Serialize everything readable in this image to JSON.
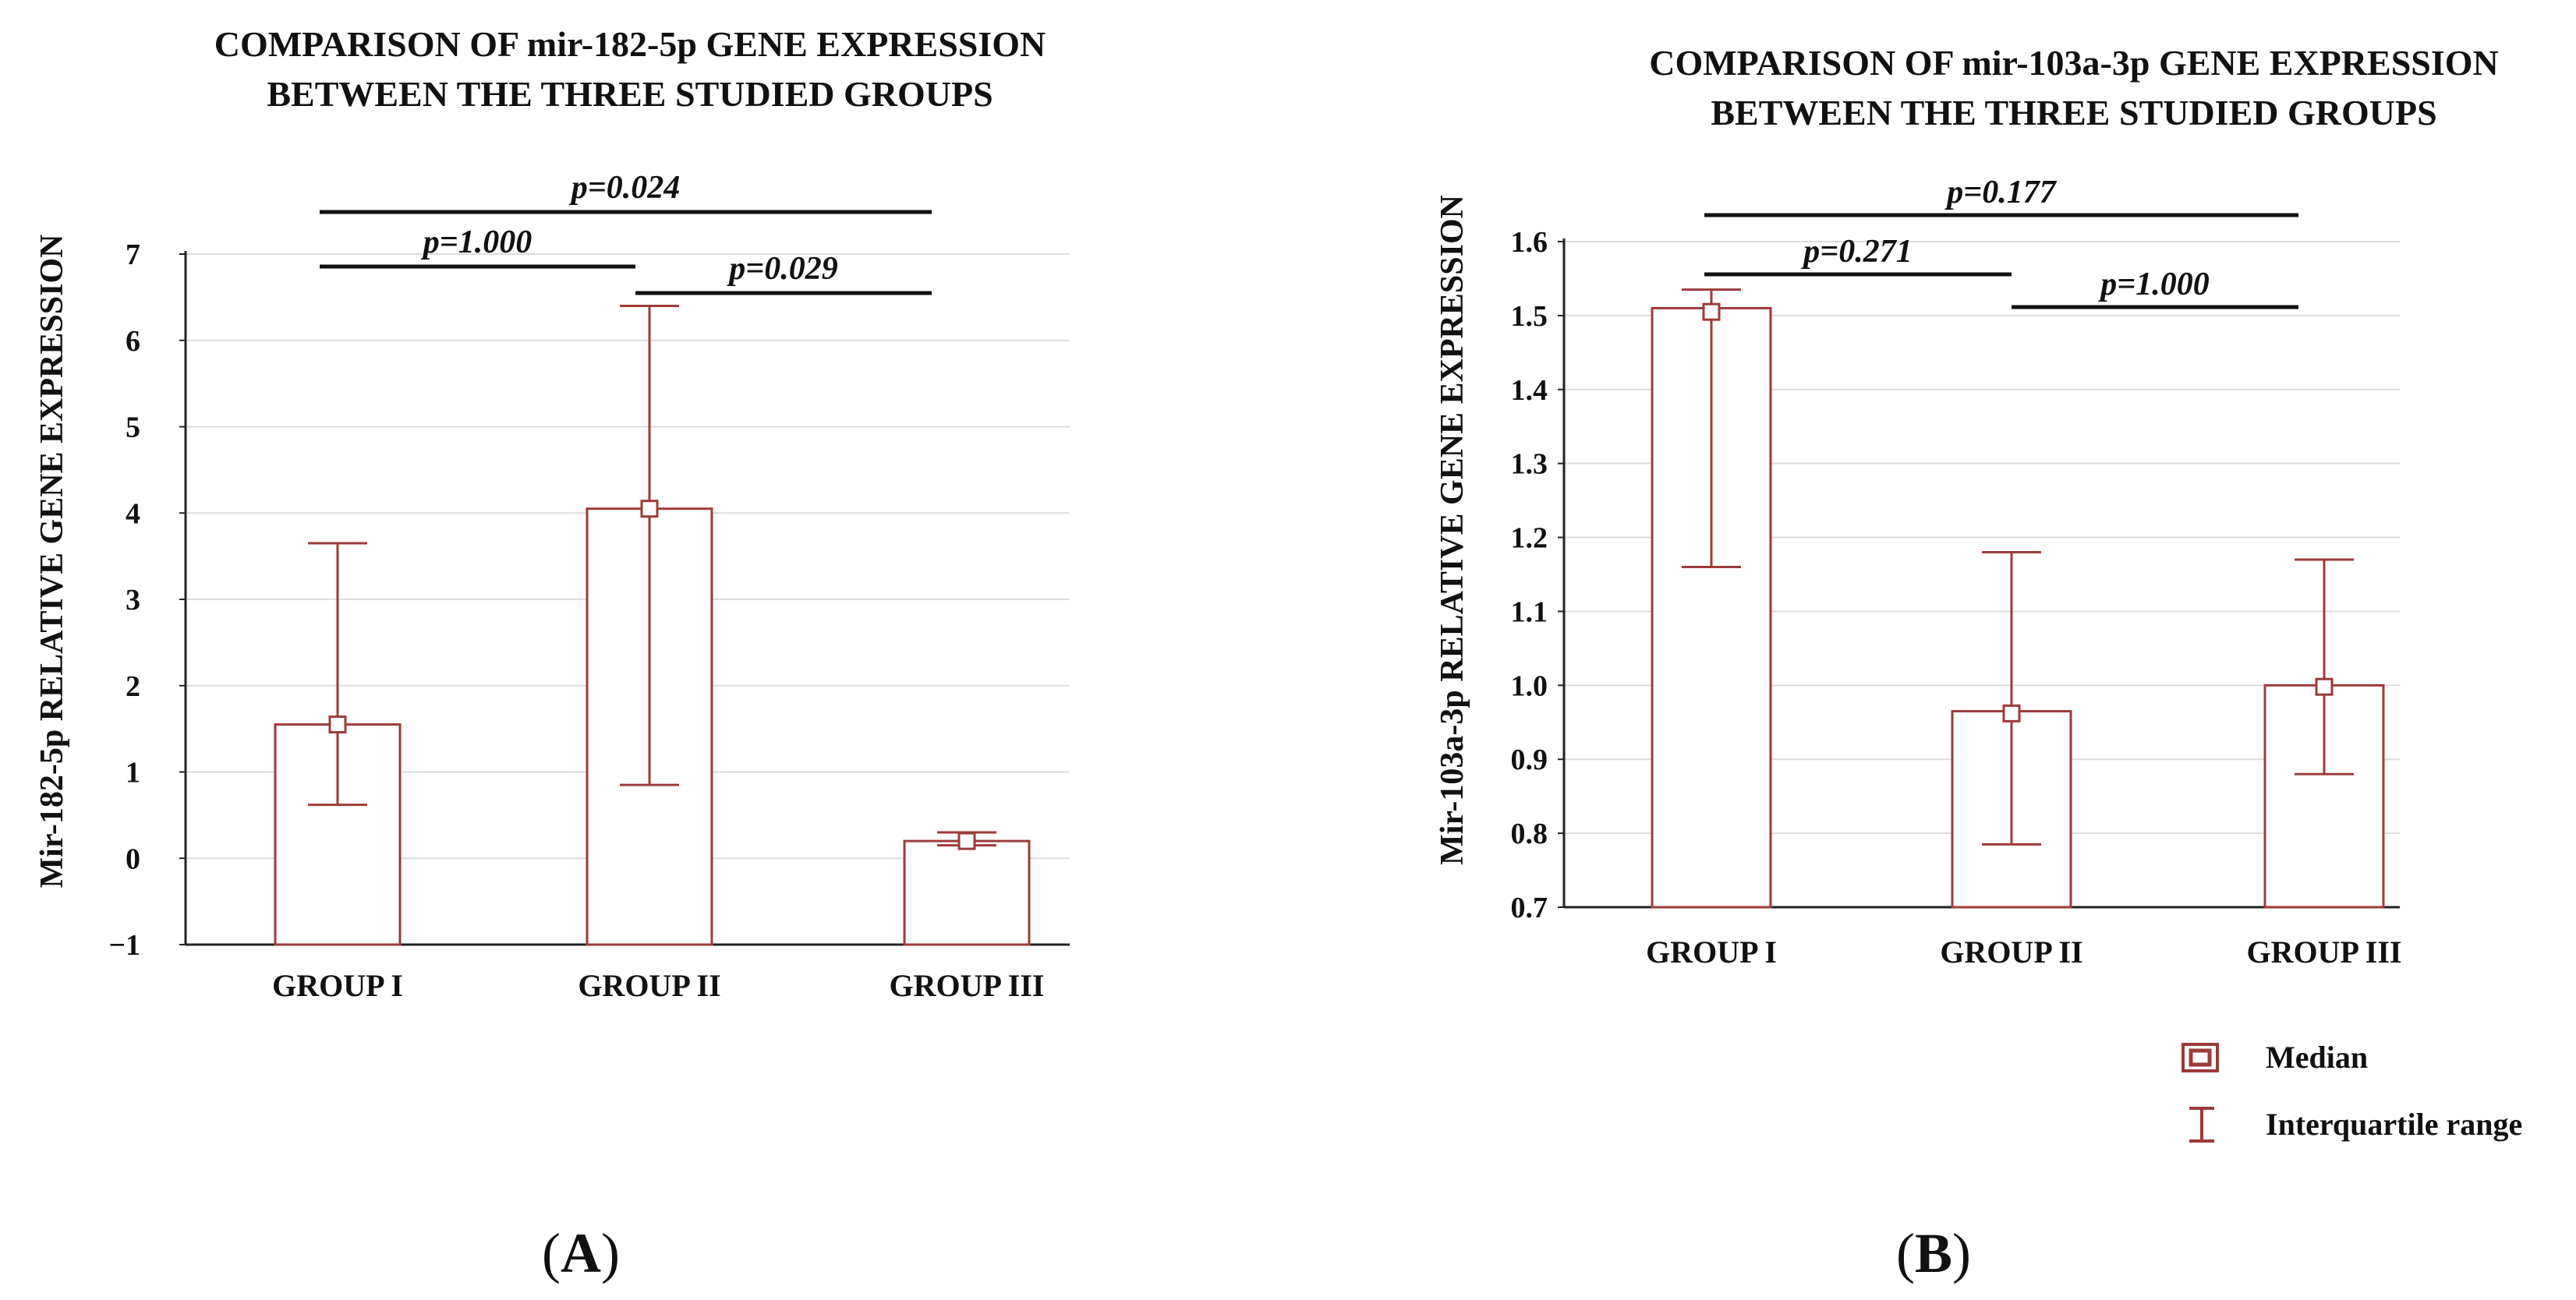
{
  "colors": {
    "bar": "#9e3a3a",
    "axis": "#222222",
    "grid": "#dcdcdc",
    "median_fill": "#ffffff"
  },
  "legend": {
    "median_label": "Median",
    "iqr_label": "Interquartile range",
    "median_icon": "hollow-square-icon",
    "iqr_icon": "i-beam-icon"
  },
  "chart_data": [
    {
      "type": "bar",
      "panel_label": "A",
      "title_lines": [
        "COMPARISON OF mir-182-5p GENE EXPRESSION",
        "BETWEEN THE THREE STUDIED GROUPS"
      ],
      "ylabel": "Mir-182-5p  RELATIVE GENE EXPRESSION",
      "xlabel": "",
      "categories": [
        "GROUP I",
        "GROUP II",
        "GROUP III"
      ],
      "values": [
        1.55,
        4.05,
        0.2
      ],
      "median": [
        1.55,
        4.05,
        0.2
      ],
      "iqr_low": [
        0.62,
        0.85,
        0.15
      ],
      "iqr_high": [
        3.65,
        6.4,
        0.3
      ],
      "ylim": [
        -1,
        7
      ],
      "yticks": [
        "7",
        "6",
        "5",
        "4",
        "3",
        "2",
        "1",
        "0",
        "−1"
      ],
      "ytick_values": [
        7,
        6,
        5,
        4,
        3,
        2,
        1,
        0,
        -1
      ],
      "grid": true,
      "comparisons": [
        {
          "label": "p=0.024",
          "from": 0,
          "to": 2,
          "level": 1
        },
        {
          "label": "p=1.000",
          "from": 0,
          "to": 1,
          "level": 2
        },
        {
          "label": "p=0.029",
          "from": 1,
          "to": 2,
          "level": 3
        }
      ]
    },
    {
      "type": "bar",
      "panel_label": "B",
      "title_lines": [
        "COMPARISON OF mir-103a-3p GENE EXPRESSION",
        "BETWEEN THE THREE STUDIED GROUPS"
      ],
      "ylabel": "Mir-103a-3p  RELATIVE GENE EXPRESSION",
      "xlabel": "",
      "categories": [
        "GROUP I",
        "GROUP II",
        "GROUP III"
      ],
      "values": [
        1.51,
        0.965,
        1.0
      ],
      "median": [
        1.505,
        0.962,
        0.998
      ],
      "iqr_low": [
        1.16,
        0.785,
        0.88
      ],
      "iqr_high": [
        1.535,
        1.18,
        1.17
      ],
      "ylim": [
        0.7,
        1.6
      ],
      "yticks": [
        "1.6",
        "1.5",
        "1.4",
        "1.3",
        "1.2",
        "1.1",
        "1.0",
        "0.9",
        "0.8",
        "0.7"
      ],
      "ytick_values": [
        1.6,
        1.5,
        1.4,
        1.3,
        1.2,
        1.1,
        1.0,
        0.9,
        0.8,
        0.7
      ],
      "grid": true,
      "comparisons": [
        {
          "label": "p=0.177",
          "from": 0,
          "to": 2,
          "level": 1
        },
        {
          "label": "p=0.271",
          "from": 0,
          "to": 1,
          "level": 2
        },
        {
          "label": "p=1.000",
          "from": 1,
          "to": 2,
          "level": 3
        }
      ]
    }
  ]
}
